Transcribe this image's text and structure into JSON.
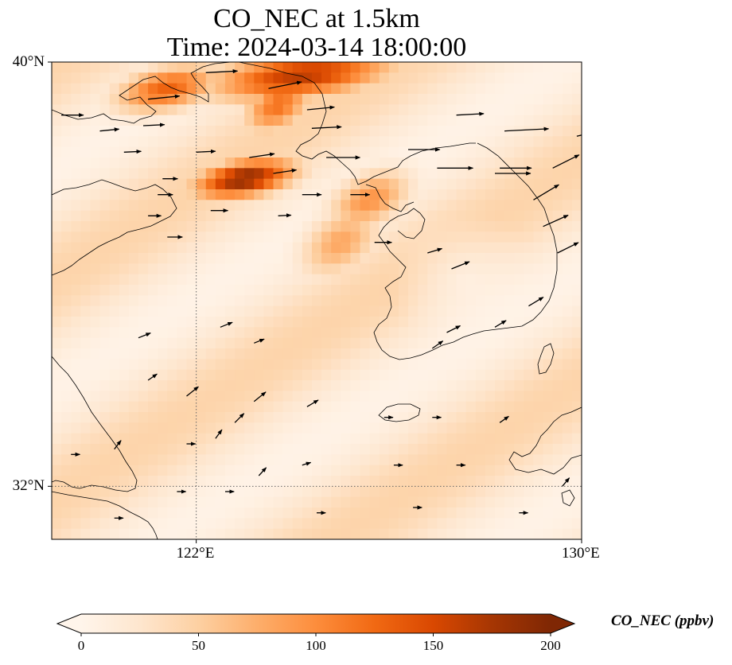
{
  "title": {
    "line1": "CO_NEC at 1.5km",
    "line2": "Time: 2024-03-14 18:00:00"
  },
  "map": {
    "extent": {
      "lon": [
        119.0,
        130.0
      ],
      "lat": [
        31.0,
        40.0
      ]
    },
    "lat_ticks": [
      {
        "value": 40,
        "label": "40°N"
      },
      {
        "value": 32,
        "label": "32°N"
      }
    ],
    "lon_ticks": [
      {
        "value": 122,
        "label": "122°E"
      },
      {
        "value": 130,
        "label": "130°E"
      }
    ],
    "gridlines": {
      "lon": [
        122
      ],
      "lat": [
        32
      ],
      "style": "dotted"
    },
    "field_hotspots": [
      {
        "lon": 124.2,
        "lat": 39.75,
        "value": 165,
        "spread_lon": 1.6,
        "spread_lat": 0.45
      },
      {
        "lon": 121.4,
        "lat": 39.5,
        "value": 130,
        "spread_lon": 0.9,
        "spread_lat": 0.4
      },
      {
        "lon": 123.7,
        "lat": 39.2,
        "value": 120,
        "spread_lon": 0.6,
        "spread_lat": 0.5
      },
      {
        "lon": 123.0,
        "lat": 37.8,
        "value": 190,
        "spread_lon": 0.9,
        "spread_lat": 0.35
      },
      {
        "lon": 125.6,
        "lat": 37.4,
        "value": 95,
        "spread_lon": 0.7,
        "spread_lat": 0.5
      },
      {
        "lon": 125.0,
        "lat": 36.6,
        "value": 80,
        "spread_lon": 0.7,
        "spread_lat": 0.6
      }
    ],
    "field_background": 45,
    "wind_vectors": [
      [
        119.2,
        39.0,
        1.0,
        0.0,
        0.42
      ],
      [
        120.0,
        38.7,
        1.0,
        -0.1,
        0.35
      ],
      [
        120.5,
        38.3,
        1.0,
        -0.05,
        0.3
      ],
      [
        120.9,
        38.8,
        1.0,
        -0.05,
        0.4
      ],
      [
        121.0,
        39.3,
        1.0,
        -0.1,
        0.65
      ],
      [
        122.0,
        38.3,
        1.0,
        -0.05,
        0.35
      ],
      [
        121.3,
        37.8,
        1.0,
        0.0,
        0.25
      ],
      [
        121.2,
        37.5,
        1.0,
        0.0,
        0.25
      ],
      [
        122.2,
        39.8,
        1.0,
        -0.05,
        0.65
      ],
      [
        123.5,
        39.5,
        1.0,
        -0.2,
        0.7
      ],
      [
        124.3,
        39.1,
        1.0,
        -0.1,
        0.55
      ],
      [
        124.4,
        38.75,
        1.0,
        -0.05,
        0.6
      ],
      [
        123.1,
        38.2,
        1.0,
        -0.15,
        0.5
      ],
      [
        123.6,
        37.9,
        1.0,
        -0.15,
        0.45
      ],
      [
        124.7,
        38.2,
        1.0,
        0.0,
        0.7
      ],
      [
        126.4,
        38.35,
        1.0,
        0.0,
        0.65
      ],
      [
        127.4,
        39.0,
        1.0,
        -0.05,
        0.55
      ],
      [
        128.4,
        38.7,
        1.0,
        -0.05,
        0.95
      ],
      [
        129.9,
        38.6,
        1.0,
        -0.25,
        0.6
      ],
      [
        127.0,
        38.0,
        1.0,
        0.0,
        0.75
      ],
      [
        128.3,
        38.0,
        1.0,
        0.0,
        0.65
      ],
      [
        128.2,
        37.9,
        1.0,
        0.0,
        0.75
      ],
      [
        129.4,
        38.0,
        1.0,
        -0.5,
        0.6
      ],
      [
        129.0,
        37.4,
        1.0,
        -0.6,
        0.6
      ],
      [
        129.2,
        36.9,
        1.0,
        -0.45,
        0.55
      ],
      [
        129.5,
        36.4,
        1.0,
        -0.5,
        0.45
      ],
      [
        127.3,
        36.1,
        1.0,
        -0.4,
        0.35
      ],
      [
        126.8,
        36.4,
        1.0,
        -0.3,
        0.25
      ],
      [
        124.2,
        37.5,
        1.0,
        0.0,
        0.35
      ],
      [
        125.2,
        37.5,
        1.0,
        0.0,
        0.35
      ],
      [
        123.7,
        37.1,
        1.0,
        -0.05,
        0.2
      ],
      [
        122.3,
        37.2,
        1.0,
        0.0,
        0.3
      ],
      [
        121.0,
        37.1,
        1.0,
        0.0,
        0.2
      ],
      [
        121.4,
        36.7,
        1.0,
        0.0,
        0.25
      ],
      [
        125.7,
        36.6,
        1.0,
        0.0,
        0.3
      ],
      [
        128.9,
        35.4,
        1.0,
        -0.6,
        0.3
      ],
      [
        130.0,
        35.2,
        1.0,
        -0.8,
        0.2
      ],
      [
        128.2,
        35.0,
        1.0,
        -0.6,
        0.2
      ],
      [
        127.2,
        34.9,
        1.0,
        -0.5,
        0.25
      ],
      [
        126.9,
        34.6,
        1.0,
        -0.7,
        0.2
      ],
      [
        120.8,
        34.8,
        1.0,
        -0.4,
        0.2
      ],
      [
        122.5,
        35.0,
        1.0,
        -0.4,
        0.2
      ],
      [
        123.2,
        34.7,
        1.0,
        -0.4,
        0.15
      ],
      [
        121.8,
        33.7,
        1.0,
        -0.8,
        0.25
      ],
      [
        122.8,
        33.2,
        1.0,
        -1.0,
        0.2
      ],
      [
        121.0,
        34.0,
        1.0,
        -0.7,
        0.15
      ],
      [
        123.2,
        33.6,
        1.0,
        -0.8,
        0.25
      ],
      [
        124.3,
        33.5,
        1.0,
        -0.6,
        0.2
      ],
      [
        122.4,
        32.9,
        1.0,
        -1.4,
        0.15
      ],
      [
        120.3,
        32.7,
        1.0,
        -1.3,
        0.15
      ],
      [
        123.3,
        32.2,
        1.0,
        -1.1,
        0.15
      ],
      [
        124.2,
        32.4,
        1.0,
        -0.3,
        0.1
      ],
      [
        121.8,
        32.8,
        1.0,
        0.0,
        0.1
      ],
      [
        119.4,
        32.6,
        1.0,
        0.0,
        0.1
      ],
      [
        121.6,
        31.9,
        1.0,
        0.0,
        0.1
      ],
      [
        122.6,
        31.9,
        1.0,
        0.0,
        0.1
      ],
      [
        125.9,
        33.3,
        1.0,
        0.0,
        0.1
      ],
      [
        126.9,
        33.3,
        1.0,
        0.0,
        0.1
      ],
      [
        128.3,
        33.2,
        1.0,
        -0.7,
        0.15
      ],
      [
        129.6,
        32.0,
        1.0,
        -1.2,
        0.15
      ],
      [
        126.5,
        31.6,
        1.0,
        0.0,
        0.1
      ],
      [
        128.7,
        31.5,
        1.0,
        0.0,
        0.1
      ],
      [
        126.1,
        32.4,
        1.0,
        0.0,
        0.1
      ],
      [
        127.4,
        32.4,
        1.0,
        0.0,
        0.1
      ],
      [
        120.3,
        31.4,
        1.0,
        0.0,
        0.1
      ],
      [
        124.5,
        31.5,
        1.0,
        0.0,
        0.1
      ]
    ]
  },
  "colorbar": {
    "label": "CO_NEC (ppbv)",
    "min": 0,
    "max": 200,
    "ticks": [
      0,
      50,
      100,
      150,
      200
    ],
    "extend": "both",
    "colormap": [
      "#fff5eb",
      "#fee6ce",
      "#fdd0a2",
      "#fdae6b",
      "#fd8d3c",
      "#f16913",
      "#d94801",
      "#a63603",
      "#7f2704"
    ],
    "colormap_name": "Oranges-Reds"
  },
  "colors": {
    "coastline": "#000000",
    "gridline": "#666666",
    "arrow": "#000000"
  }
}
